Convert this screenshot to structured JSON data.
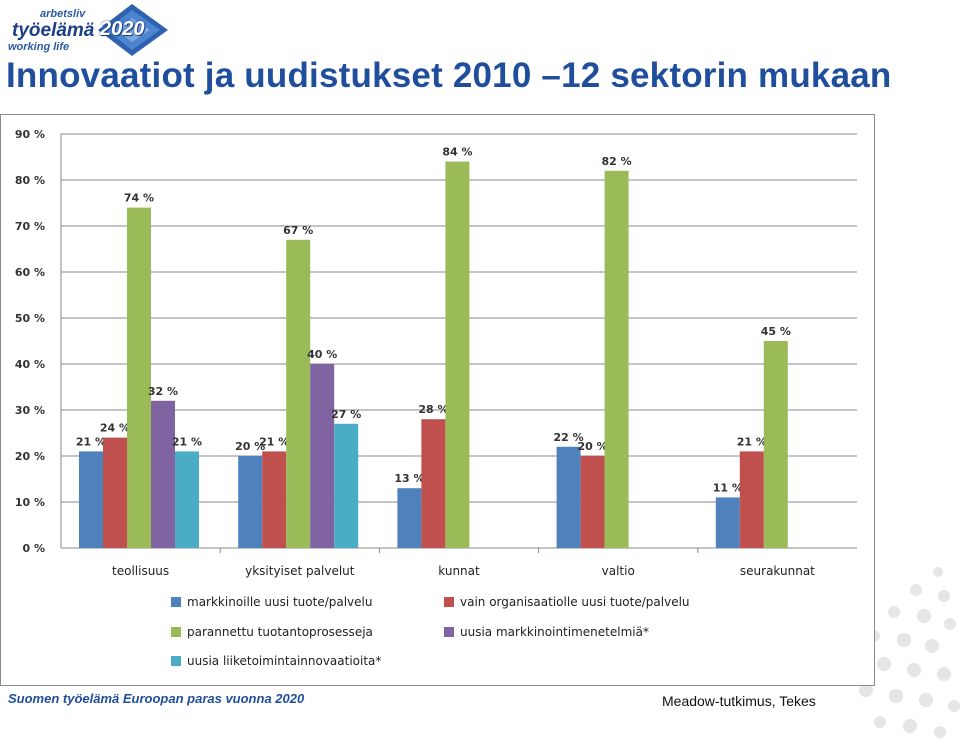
{
  "logo": {
    "line1": "arbetsliv",
    "line2": "työelämä",
    "line3": "working life",
    "year": "2020"
  },
  "title": "Innovaatiot ja uudistukset 2010 –12 sektorin mukaan",
  "footer": {
    "left": "Suomen työelämä Euroopan paras vuonna 2020",
    "right": "Meadow-tutkimus, Tekes"
  },
  "chart_data": {
    "type": "bar",
    "categories": [
      "teollisuus",
      "yksityiset palvelut",
      "kunnat",
      "valtio",
      "seurakunnat"
    ],
    "series": [
      {
        "name": "markkinoille uusi tuote/palvelu",
        "color": "#4f81bd",
        "values": [
          21,
          20,
          13,
          22,
          11
        ],
        "labels": [
          "21 %",
          "20 %",
          "13 %",
          "22 %",
          "11 %"
        ]
      },
      {
        "name": "vain organisaatiolle uusi tuote/palvelu",
        "color": "#c0504d",
        "values": [
          24,
          21,
          28,
          20,
          21
        ],
        "labels": [
          "24 %",
          "21 %",
          "28 %",
          "20 %",
          "21 %"
        ]
      },
      {
        "name": "parannettu tuotantoprosesseja",
        "color": "#9bbb59",
        "values": [
          74,
          67,
          84,
          82,
          45
        ],
        "labels": [
          "74 %",
          "67 %",
          "84 %",
          "82 %",
          "45 %"
        ]
      },
      {
        "name": "uusia markkinointimenetelmiä*",
        "color": "#8064a2",
        "values": [
          32,
          40,
          null,
          null,
          null
        ],
        "labels": [
          "32 %",
          "40 %",
          null,
          null,
          null
        ]
      },
      {
        "name": "uusia liiketoimintainnovaatioita*",
        "color": "#4bacc6",
        "values": [
          21,
          27,
          null,
          null,
          null
        ],
        "labels": [
          "21 %",
          "27 %",
          null,
          null,
          null
        ]
      }
    ],
    "yticks": [
      "0 %",
      "10 %",
      "20 %",
      "30 %",
      "40 %",
      "50 %",
      "60 %",
      "70 %",
      "80 %",
      "90 %"
    ],
    "ylim": [
      0,
      90
    ],
    "grid": true,
    "legend_position": "bottom"
  }
}
